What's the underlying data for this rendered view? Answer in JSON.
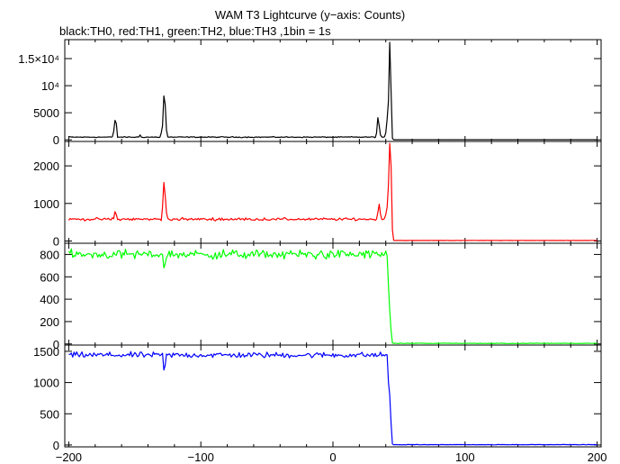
{
  "title": "WAM T3 Lightcurve (y−axis: Counts)",
  "subtitle": "black:TH0, red:TH1, green:TH2, blue:TH3 ,1bin = 1s",
  "chart_data": {
    "type": "line",
    "title": "WAM T3 Lightcurve (y−axis: Counts)",
    "subtitle": "black:TH0, red:TH1, green:TH2, blue:TH3 ,1bin = 1s",
    "xlim": [
      -203,
      203
    ],
    "x_ticks": [
      {
        "value": -200,
        "label": "−200"
      },
      {
        "value": -100,
        "label": "−100"
      },
      {
        "value": 0,
        "label": "0"
      },
      {
        "value": 100,
        "label": "100"
      },
      {
        "value": 200,
        "label": "200"
      }
    ],
    "panels": [
      {
        "name": "TH0",
        "color": "#000000",
        "ylim": [
          -300,
          18500
        ],
        "y_ticks": [
          {
            "value": 0,
            "label": "0"
          },
          {
            "value": 5000,
            "label": "5000"
          },
          {
            "value": 10000,
            "label": "10⁴"
          },
          {
            "value": 15000,
            "label": "1.5×10⁴"
          }
        ],
        "baseline": 500,
        "noise": 55,
        "features": [
          {
            "x": -165,
            "y": 3600
          },
          {
            "x": -164,
            "y": 3000
          },
          {
            "x": -166,
            "y": 1500
          },
          {
            "x": -146,
            "y": 900
          },
          {
            "x": -130,
            "y": 1300
          },
          {
            "x": -129,
            "y": 2600
          },
          {
            "x": -128,
            "y": 8100
          },
          {
            "x": -127,
            "y": 6500
          },
          {
            "x": -126,
            "y": 1800
          },
          {
            "x": 33,
            "y": 1200
          },
          {
            "x": 34,
            "y": 4100
          },
          {
            "x": 35,
            "y": 2600
          },
          {
            "x": 36,
            "y": 900
          },
          {
            "x": 40,
            "y": 1300
          },
          {
            "x": 41,
            "y": 3800
          },
          {
            "x": 42,
            "y": 7200
          },
          {
            "x": 43,
            "y": 18000
          },
          {
            "x": 44,
            "y": 9000
          },
          {
            "x": 45,
            "y": 300
          }
        ],
        "after": {
          "x": 45,
          "y": 20
        }
      },
      {
        "name": "TH1",
        "color": "#ff0000",
        "ylim": [
          -60,
          2650
        ],
        "y_ticks": [
          {
            "value": 0,
            "label": "0"
          },
          {
            "value": 1000,
            "label": "1000"
          },
          {
            "value": 2000,
            "label": "2000"
          }
        ],
        "baseline": 580,
        "noise": 22,
        "features": [
          {
            "x": -165,
            "y": 780
          },
          {
            "x": -164,
            "y": 700
          },
          {
            "x": -129,
            "y": 900
          },
          {
            "x": -128,
            "y": 1560
          },
          {
            "x": -127,
            "y": 1200
          },
          {
            "x": -126,
            "y": 750
          },
          {
            "x": 34,
            "y": 760
          },
          {
            "x": 35,
            "y": 980
          },
          {
            "x": 36,
            "y": 720
          },
          {
            "x": 40,
            "y": 700
          },
          {
            "x": 41,
            "y": 900
          },
          {
            "x": 42,
            "y": 1500
          },
          {
            "x": 43,
            "y": 2600
          },
          {
            "x": 44,
            "y": 2000
          },
          {
            "x": 45,
            "y": 300
          }
        ],
        "after": {
          "x": 45,
          "y": 15
        }
      },
      {
        "name": "TH2",
        "color": "#00ff00",
        "ylim": [
          -10,
          900
        ],
        "y_ticks": [
          {
            "value": 0,
            "label": "0"
          },
          {
            "value": 200,
            "label": "200"
          },
          {
            "value": 400,
            "label": "400"
          },
          {
            "value": 600,
            "label": "600"
          },
          {
            "value": 800,
            "label": "800"
          }
        ],
        "baseline": 800,
        "noise": 25,
        "features": [
          {
            "x": -128,
            "y": 680
          },
          {
            "x": -127,
            "y": 720
          },
          {
            "x": 42,
            "y": 520
          },
          {
            "x": 43,
            "y": 300
          },
          {
            "x": 44,
            "y": 120
          },
          {
            "x": 45,
            "y": 10
          }
        ],
        "after": {
          "x": 45,
          "y": 5
        }
      },
      {
        "name": "TH3",
        "color": "#0000ff",
        "ylim": [
          -30,
          1600
        ],
        "y_ticks": [
          {
            "value": 0,
            "label": "0"
          },
          {
            "value": 500,
            "label": "500"
          },
          {
            "value": 1000,
            "label": "1000"
          },
          {
            "value": 1500,
            "label": "1500"
          }
        ],
        "baseline": 1440,
        "noise": 28,
        "features": [
          {
            "x": -128,
            "y": 1200
          },
          {
            "x": -127,
            "y": 1280
          },
          {
            "x": 42,
            "y": 1000
          },
          {
            "x": 43,
            "y": 800
          },
          {
            "x": 44,
            "y": 350
          },
          {
            "x": 45,
            "y": 15
          }
        ],
        "after": {
          "x": 45,
          "y": 5
        }
      }
    ]
  }
}
